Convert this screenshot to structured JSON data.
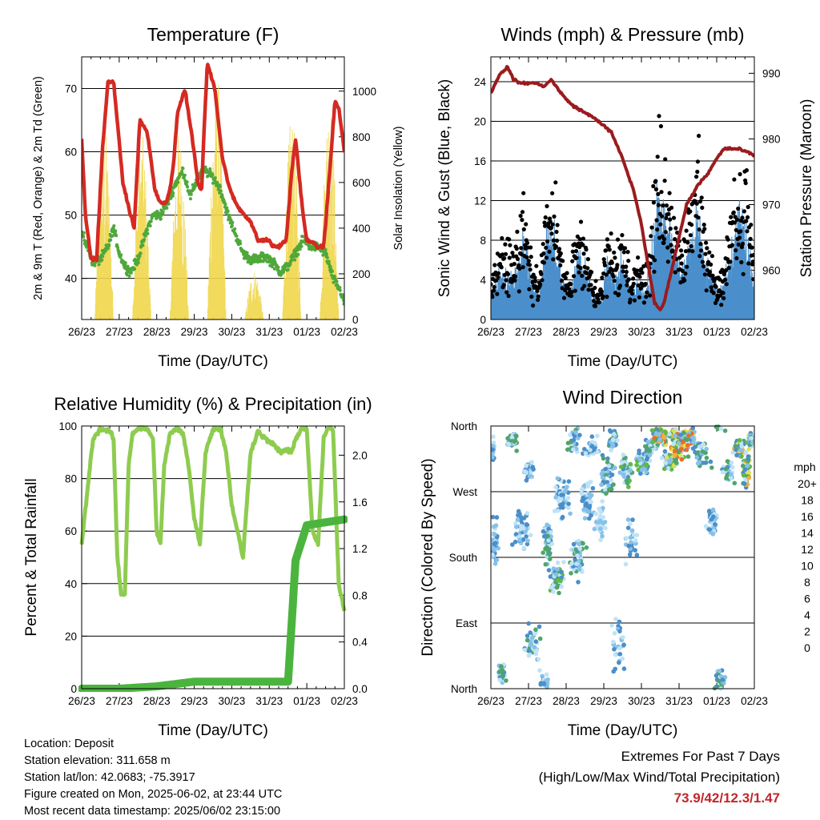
{
  "x_ticks": [
    "26/23",
    "27/23",
    "28/23",
    "29/23",
    "30/23",
    "31/23",
    "01/23",
    "02/23"
  ],
  "x_label": "Time (Day/UTC)",
  "charts": [
    {
      "id": "temperature",
      "title": "Temperature (F)",
      "ylabel_left": "2m & 9m T (Red, Orange) & 2m Td (Green)",
      "ylabel_right": "Solar Insolation (Yellow)",
      "left_ticks": [
        "40",
        "50",
        "60",
        "70"
      ],
      "right_ticks": [
        "0",
        "200",
        "400",
        "600",
        "800",
        "1000"
      ]
    },
    {
      "id": "winds",
      "title": "Winds (mph) & Pressure (mb)",
      "ylabel_left": "Sonic Wind & Gust (Blue, Black)",
      "ylabel_right": "Station Pressure (Maroon)",
      "left_ticks": [
        "0",
        "4",
        "8",
        "12",
        "16",
        "20",
        "24"
      ],
      "right_ticks": [
        "960",
        "970",
        "980",
        "990"
      ]
    },
    {
      "id": "humidity",
      "title": "Relative Humidity (%) & Precipitation (in)",
      "ylabel_left": "Percent & Total Rainfall",
      "left_ticks": [
        "0",
        "20",
        "40",
        "60",
        "80",
        "100"
      ],
      "right_ticks": [
        "0.0",
        "0.4",
        "0.8",
        "1.2",
        "1.6",
        "2.0"
      ]
    },
    {
      "id": "direction",
      "title": "Wind Direction",
      "ylabel_left": "Direction (Colored By Speed)",
      "left_ticks": [
        "North",
        "East",
        "South",
        "West",
        "North"
      ]
    }
  ],
  "colorbar": {
    "title": "mph",
    "labels": [
      "0",
      "2",
      "4",
      "6",
      "8",
      "10",
      "12",
      "14",
      "16",
      "18",
      "20+"
    ],
    "colors": [
      "#bfe3f6",
      "#86c1e9",
      "#4b8ec9",
      "#4fa56b",
      "#61b847",
      "#e6e04c",
      "#f5ad3b",
      "#f06a24",
      "#de2b24",
      "#c21d21",
      "#9b1b1e"
    ]
  },
  "info": {
    "location": "Location: Deposit",
    "elevation": "Station elevation: 311.658 m",
    "latlon": "Station lat/lon: 42.0683; -75.3917",
    "created": "Figure created on Mon, 2025-06-02, at 23:44 UTC",
    "recent": "Most recent data timestamp: 2025/06/02 23:15:00"
  },
  "extremes": {
    "title": "Extremes For Past 7 Days",
    "subtitle": "(High/Low/Max Wind/Total Precipitation)",
    "values": "73.9/42/12.3/1.47"
  },
  "chart_data": [
    {
      "type": "line",
      "title": "Temperature (F)",
      "x_days": [
        "26/23",
        "27/23",
        "28/23",
        "29/23",
        "30/23",
        "31/23",
        "01/23",
        "02/23"
      ],
      "ylim_left": [
        33.5,
        75
      ],
      "ylim_right": [
        0,
        1150
      ],
      "series": [
        {
          "axis": "left",
          "color": "#d42a22",
          "x": [
            0,
            0.1,
            0.25,
            0.4,
            0.55,
            0.7,
            0.85,
            0.98,
            1.1,
            1.3,
            1.4,
            1.55,
            1.75,
            1.95,
            2.1,
            2.25,
            2.35,
            2.45,
            2.55,
            2.75,
            2.95,
            3.1,
            3.2,
            3.25,
            3.35,
            3.55,
            3.75,
            3.95,
            4.1,
            4.2,
            4.5,
            4.7,
            4.85,
            5.0,
            5.1,
            5.25,
            5.45,
            5.6,
            5.7,
            5.8,
            5.9,
            6.0,
            6.1,
            6.25,
            6.45,
            6.6,
            6.75,
            6.85,
            7.0
          ],
          "y": [
            62,
            50,
            43,
            43,
            60,
            71,
            71,
            63,
            55,
            50,
            48,
            65,
            63,
            54,
            52,
            52,
            54,
            58,
            66,
            70,
            62,
            55,
            54,
            62,
            74,
            70,
            59,
            54,
            52,
            51,
            49,
            46,
            46,
            46,
            45,
            45,
            46,
            57,
            62,
            56,
            50,
            46,
            46,
            45,
            45,
            56,
            68,
            67,
            60
          ]
        },
        {
          "axis": "left",
          "color": "#4ea83b",
          "x": [
            0,
            0.15,
            0.3,
            0.5,
            0.7,
            0.85,
            1.0,
            1.15,
            1.3,
            1.5,
            1.7,
            1.9,
            2.1,
            2.3,
            2.5,
            2.7,
            2.9,
            3.1,
            3.3,
            3.5,
            3.7,
            3.9,
            4.1,
            4.3,
            4.5,
            4.7,
            4.9,
            5.1,
            5.3,
            5.5,
            5.7,
            5.9,
            6.1,
            6.3,
            6.5,
            6.7,
            6.9,
            7.0
          ],
          "y": [
            47,
            45,
            42.5,
            43,
            45,
            48,
            44,
            42,
            41,
            43,
            47,
            50,
            50,
            52,
            55,
            57,
            53,
            56,
            57,
            56,
            54,
            50,
            47,
            44,
            43,
            43,
            43.5,
            42.5,
            41,
            42,
            44,
            46,
            45,
            45,
            44,
            40,
            38,
            36
          ]
        },
        {
          "axis": "right",
          "color": "#f0d64a",
          "unit": "W/m2",
          "daily_peaks": [
            860,
            820,
            840,
            1100,
            220,
            900,
            1000
          ]
        }
      ]
    },
    {
      "type": "scatter",
      "title": "Winds (mph) & Pressure (mb)",
      "ylim_left": [
        0,
        26.5
      ],
      "ylim_right": [
        952.5,
        992.5
      ],
      "series": [
        {
          "axis": "left",
          "color": "#4a8fcc",
          "marker": "line"
        },
        {
          "axis": "left",
          "color": "#000000",
          "marker": "dot"
        },
        {
          "axis": "right",
          "color": "#9b1b1e",
          "x": [
            0,
            0.2,
            0.45,
            0.6,
            0.8,
            1.0,
            1.2,
            1.4,
            1.6,
            1.8,
            2.0,
            2.2,
            2.5,
            2.8,
            3.0,
            3.2,
            3.5,
            3.8,
            4.0,
            4.2,
            4.35,
            4.5,
            4.6,
            4.8,
            5.0,
            5.2,
            5.5,
            5.8,
            6.0,
            6.2,
            6.4,
            6.6,
            6.8,
            7.0
          ],
          "y": [
            987,
            989.5,
            991,
            989,
            988.5,
            988.5,
            988.5,
            988,
            989,
            987.5,
            986,
            985,
            984,
            983,
            982,
            981,
            977,
            972,
            967,
            960,
            955,
            954,
            955,
            960,
            965,
            970,
            973,
            975,
            977,
            978.5,
            978.5,
            978.5,
            978,
            977.5
          ]
        }
      ]
    },
    {
      "type": "line",
      "title": "Relative Humidity (%) & Precipitation (in)",
      "ylim_left": [
        0,
        100
      ],
      "ylim_right": [
        0,
        2.25
      ],
      "series": [
        {
          "axis": "left",
          "color": "#8ecc50",
          "x": [
            0,
            0.15,
            0.3,
            0.5,
            0.75,
            0.85,
            0.95,
            1.05,
            1.15,
            1.25,
            1.35,
            1.5,
            1.75,
            1.9,
            2.0,
            2.1,
            2.2,
            2.35,
            2.55,
            2.7,
            2.85,
            3.0,
            3.15,
            3.3,
            3.5,
            3.7,
            3.85,
            4.0,
            4.15,
            4.3,
            4.5,
            4.7,
            4.9,
            5.1,
            5.3,
            5.45,
            5.6,
            5.7,
            5.85,
            6.0,
            6.15,
            6.3,
            6.45,
            6.55,
            6.7,
            6.85,
            7.0
          ],
          "y": [
            55,
            75,
            95,
            99,
            98,
            95,
            50,
            36,
            36,
            85,
            97,
            99,
            99,
            95,
            60,
            55,
            85,
            97,
            99,
            97,
            85,
            65,
            55,
            90,
            99,
            99,
            90,
            70,
            60,
            50,
            90,
            98,
            95,
            93,
            90,
            91,
            90,
            95,
            99,
            99,
            60,
            55,
            95,
            99,
            99,
            40,
            30
          ]
        },
        {
          "axis": "right",
          "color": "#4bb43f",
          "x": [
            0,
            1.0,
            2.0,
            3.0,
            4.0,
            4.5,
            5.0,
            5.5,
            5.7,
            6.0,
            7.0
          ],
          "y": [
            0,
            0,
            0.02,
            0.06,
            0.06,
            0.06,
            0.06,
            0.06,
            1.1,
            1.4,
            1.45
          ]
        }
      ]
    },
    {
      "type": "scatter",
      "title": "Wind Direction",
      "y_categories": [
        "North",
        "East",
        "South",
        "West",
        "North"
      ],
      "color_by": "speed (mph)",
      "colorbar": [
        0,
        2,
        4,
        6,
        8,
        10,
        12,
        14,
        16,
        18,
        20
      ]
    }
  ]
}
